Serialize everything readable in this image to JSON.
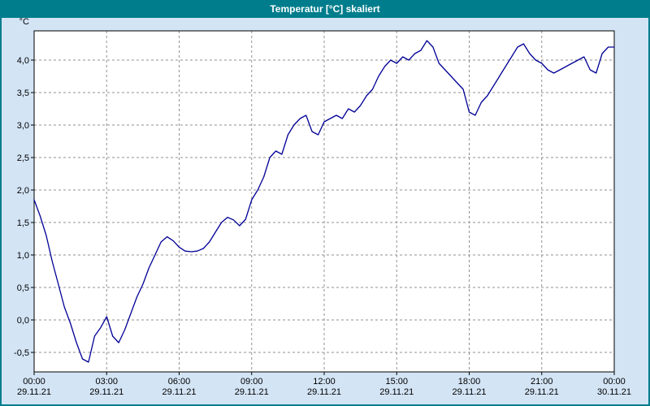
{
  "window": {
    "title": "Temperatur [°C] skaliert"
  },
  "colors": {
    "titlebar_bg": "#007d8c",
    "titlebar_text": "#ffffff",
    "window_bg": "#d3e4f5",
    "plot_bg": "#ffffff",
    "plot_border": "#000000",
    "grid": "#909090",
    "tick_text": "#000000",
    "line": "#000096"
  },
  "chart_data": {
    "type": "line",
    "title": "Temperatur [°C] skaliert",
    "ylabel": "°C",
    "xlabel": "",
    "grid": "dashed",
    "legend": "none",
    "xlim": [
      0,
      24
    ],
    "ylim": [
      -0.8,
      4.45
    ],
    "y_ticks": [
      4.0,
      3.5,
      3.0,
      2.5,
      2.0,
      1.5,
      1.0,
      0.5,
      0.0,
      -0.5
    ],
    "y_tick_labels": [
      "4,0",
      "3,5",
      "3,0",
      "2,5",
      "2,0",
      "1,5",
      "1,0",
      "0,5",
      "0,0",
      "-0,5"
    ],
    "x_ticks_hours": [
      0,
      3,
      6,
      9,
      12,
      15,
      18,
      21,
      24
    ],
    "x_tick_times": [
      "00:00",
      "03:00",
      "06:00",
      "09:00",
      "12:00",
      "15:00",
      "18:00",
      "21:00",
      "00:00"
    ],
    "x_tick_dates": [
      "29.11.21",
      "29.11.21",
      "29.11.21",
      "29.11.21",
      "29.11.21",
      "29.11.21",
      "29.11.21",
      "29.11.21",
      "30.11.21"
    ],
    "series": [
      {
        "name": "Temperatur",
        "color": "#000096",
        "x_start_hours": 0,
        "x_step_hours": 0.25,
        "y": [
          1.85,
          1.6,
          1.3,
          0.9,
          0.55,
          0.2,
          -0.05,
          -0.35,
          -0.6,
          -0.65,
          -0.25,
          -0.12,
          0.05,
          -0.25,
          -0.35,
          -0.15,
          0.1,
          0.35,
          0.55,
          0.8,
          1.0,
          1.2,
          1.28,
          1.22,
          1.12,
          1.06,
          1.05,
          1.06,
          1.1,
          1.2,
          1.35,
          1.5,
          1.58,
          1.54,
          1.45,
          1.55,
          1.85,
          2.0,
          2.2,
          2.5,
          2.6,
          2.55,
          2.85,
          3.0,
          3.1,
          3.15,
          2.9,
          2.85,
          3.05,
          3.1,
          3.15,
          3.1,
          3.25,
          3.2,
          3.3,
          3.45,
          3.55,
          3.75,
          3.9,
          4.0,
          3.95,
          4.05,
          4.0,
          4.1,
          4.15,
          4.3,
          4.2,
          3.95,
          3.85,
          3.75,
          3.65,
          3.55,
          3.2,
          3.15,
          3.35,
          3.45,
          3.6,
          3.75,
          3.9,
          4.05,
          4.2,
          4.25,
          4.1,
          4.0,
          3.95,
          3.85,
          3.8,
          3.85,
          3.9,
          3.95,
          4.0,
          4.05,
          3.85,
          3.8,
          4.1,
          4.2,
          4.2
        ]
      }
    ]
  }
}
